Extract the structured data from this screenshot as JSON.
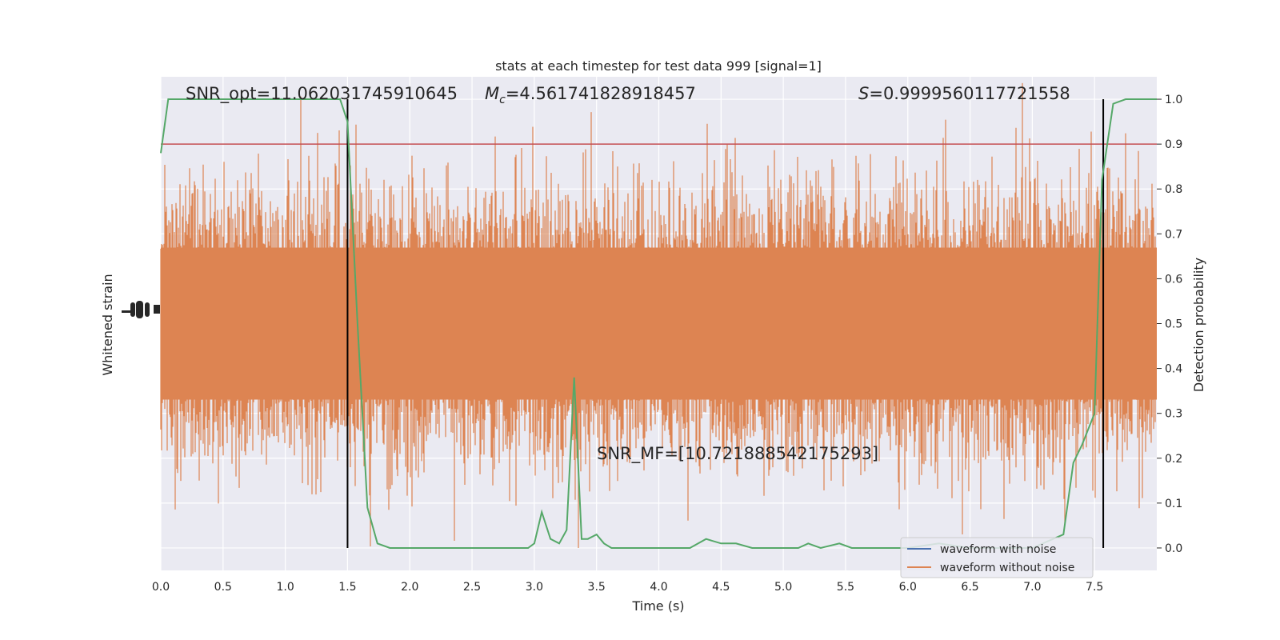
{
  "chart_data": {
    "type": "line",
    "title": "stats at each timestep for test data 999 [signal=1]",
    "xlabel": "Time (s)",
    "ylabel_left": "Whitened strain",
    "ylabel_right": "Detection probability",
    "xlim": [
      0.0,
      8.0
    ],
    "ylim_right": [
      -0.05,
      1.05
    ],
    "x_ticks": [
      "0.0",
      "0.5",
      "1.0",
      "1.5",
      "2.0",
      "2.5",
      "3.0",
      "3.5",
      "4.0",
      "4.5",
      "5.0",
      "5.5",
      "6.0",
      "6.5",
      "7.0",
      "7.5"
    ],
    "x_tick_values": [
      0.0,
      0.5,
      1.0,
      1.5,
      2.0,
      2.5,
      3.0,
      3.5,
      4.0,
      4.5,
      5.0,
      5.5,
      6.0,
      6.5,
      7.0,
      7.5
    ],
    "y_right_ticks": [
      "0.0",
      "0.1",
      "0.2",
      "0.3",
      "0.4",
      "0.5",
      "0.6",
      "0.7",
      "0.8",
      "0.9",
      "1.0"
    ],
    "y_right_tick_values": [
      0.0,
      0.1,
      0.2,
      0.3,
      0.4,
      0.5,
      0.6,
      0.7,
      0.8,
      0.9,
      1.0
    ],
    "grid": true,
    "annotations": {
      "snr_opt": "SNR_opt=11.062031745910645",
      "mc_symbol": "M",
      "mc_sub": "c",
      "mc_value": "=4.561741828918457",
      "s_symbol": "S",
      "s_value": "=0.9999560117721558",
      "snr_mf": "SNR_MF=[10.721888542175293]"
    },
    "threshold": 0.9,
    "vlines": [
      1.5,
      7.57
    ],
    "legend": {
      "placement": "lower-right",
      "entries": [
        {
          "label": "waveform with noise",
          "color": "#4c72b0"
        },
        {
          "label": "waveform without noise",
          "color": "#dd8452"
        }
      ]
    },
    "series": [
      {
        "name": "Detection probability",
        "color": "#55a868",
        "x": [
          0.0,
          0.06,
          0.25,
          0.5,
          0.75,
          1.0,
          1.25,
          1.44,
          1.5,
          1.58,
          1.66,
          1.74,
          1.84,
          2.0,
          2.25,
          2.5,
          2.75,
          2.85,
          2.95,
          3.0,
          3.06,
          3.13,
          3.2,
          3.26,
          3.32,
          3.38,
          3.43,
          3.5,
          3.56,
          3.62,
          3.75,
          4.0,
          4.25,
          4.38,
          4.5,
          4.62,
          4.75,
          5.0,
          5.12,
          5.2,
          5.3,
          5.45,
          5.55,
          5.7,
          6.0,
          6.25,
          6.5,
          6.75,
          7.0,
          7.25,
          7.33,
          7.4,
          7.5,
          7.56,
          7.65,
          7.75,
          8.0
        ],
        "y": [
          0.88,
          1.0,
          1.0,
          1.0,
          1.0,
          1.0,
          1.0,
          1.0,
          0.95,
          0.5,
          0.09,
          0.01,
          0.0,
          0.0,
          0.0,
          0.0,
          0.0,
          0.0,
          0.0,
          0.01,
          0.08,
          0.02,
          0.01,
          0.04,
          0.38,
          0.02,
          0.02,
          0.03,
          0.01,
          0.0,
          0.0,
          0.0,
          0.0,
          0.02,
          0.01,
          0.01,
          0.0,
          0.0,
          0.0,
          0.01,
          0.0,
          0.01,
          0.0,
          0.0,
          0.0,
          0.01,
          0.0,
          0.0,
          0.0,
          0.03,
          0.19,
          0.23,
          0.3,
          0.82,
          0.99,
          1.0,
          1.0
        ]
      }
    ]
  }
}
